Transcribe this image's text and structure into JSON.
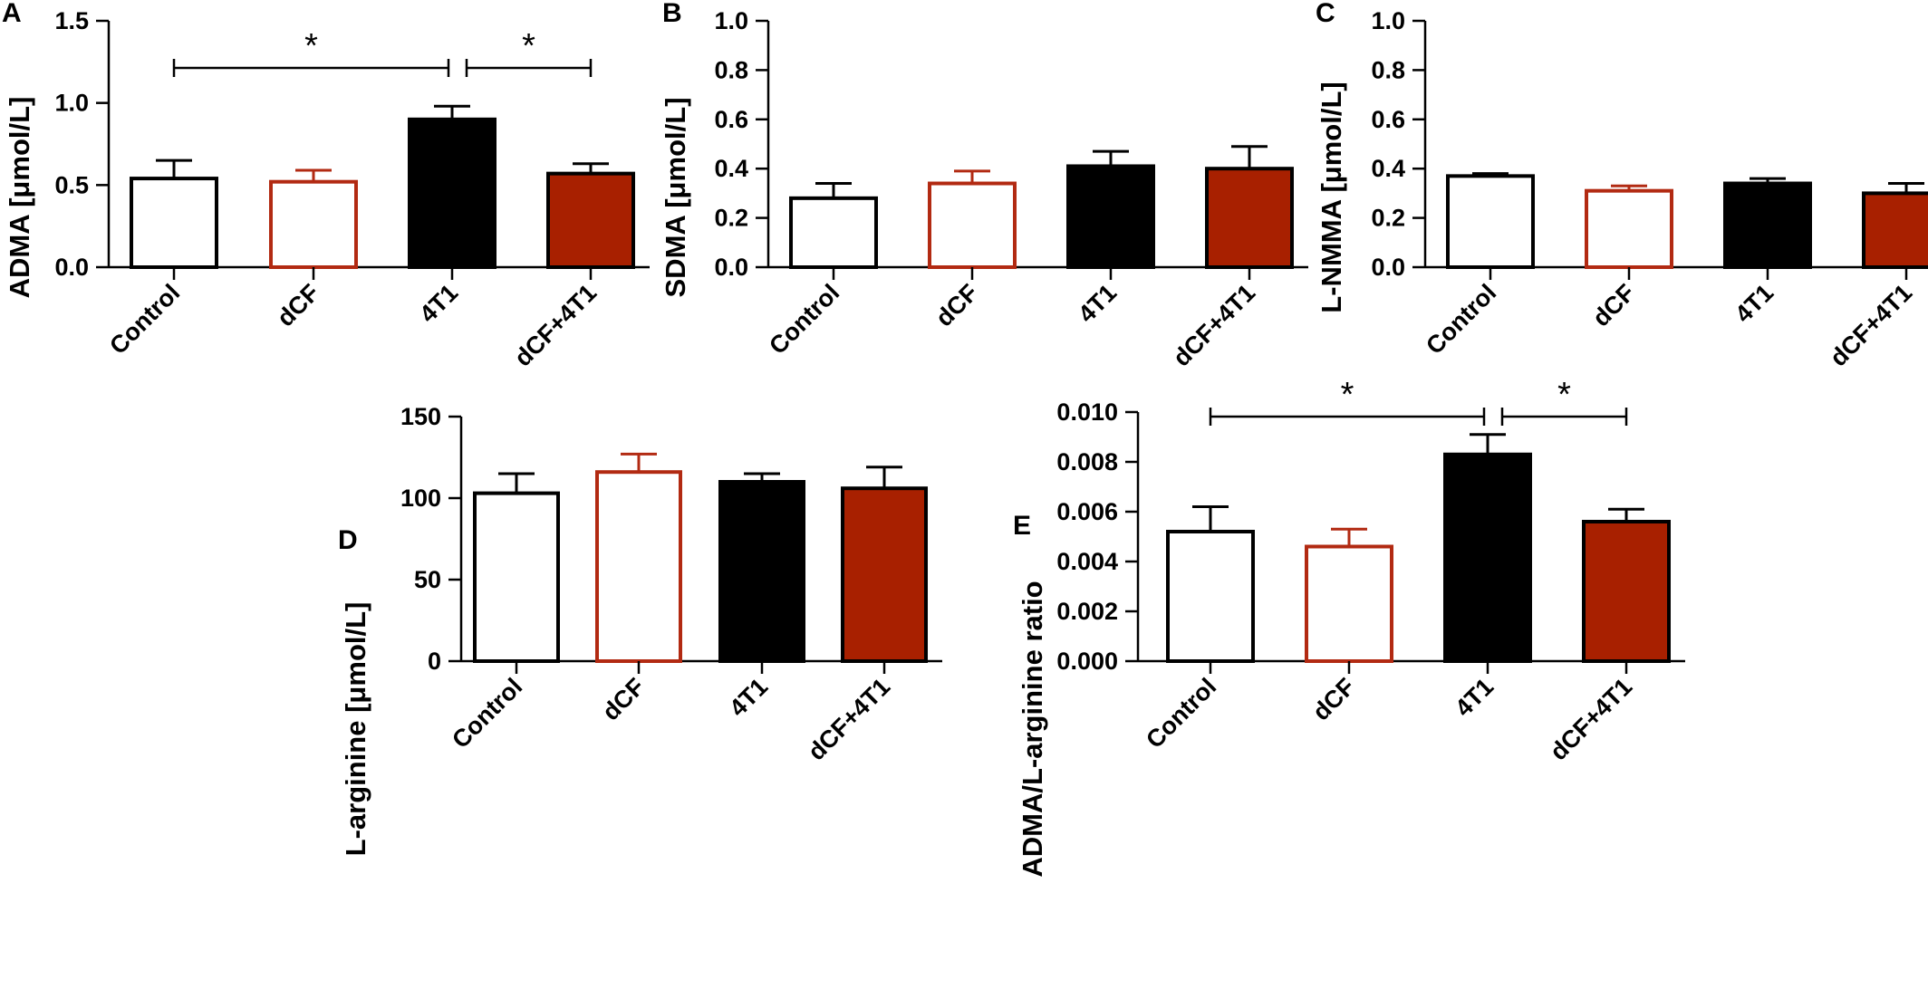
{
  "colors": {
    "control_fill": "#ffffff",
    "control_edge": "#000000",
    "dcf_fill": "#ffffff",
    "dcf_edge": "#b22a12",
    "t41_fill": "#000000",
    "t41_edge": "#000000",
    "dcf4t1_fill": "#a82000",
    "dcf4t1_edge": "#000000"
  },
  "chart_data": [
    {
      "panel": "A",
      "type": "bar",
      "categories": [
        "Control",
        "dCF",
        "4T1",
        "dCF+4T1"
      ],
      "values": [
        0.54,
        0.52,
        0.9,
        0.57
      ],
      "errors": [
        0.11,
        0.07,
        0.08,
        0.06
      ],
      "ylabel": "ADMA [μmol/L]",
      "ylim": [
        0,
        1.5
      ],
      "yticks": [
        "0.0",
        "0.5",
        "1.0",
        "1.5"
      ],
      "significance": [
        {
          "from": "Control",
          "to": "4T1",
          "label": "*"
        },
        {
          "from": "4T1",
          "to": "dCF+4T1",
          "label": "*"
        }
      ]
    },
    {
      "panel": "B",
      "type": "bar",
      "categories": [
        "Control",
        "dCF",
        "4T1",
        "dCF+4T1"
      ],
      "values": [
        0.28,
        0.34,
        0.41,
        0.4
      ],
      "errors": [
        0.06,
        0.05,
        0.06,
        0.09
      ],
      "ylabel": "SDMA [μmol/L]",
      "ylim": [
        0,
        1.0
      ],
      "yticks": [
        "0.0",
        "0.2",
        "0.4",
        "0.6",
        "0.8",
        "1.0"
      ],
      "significance": []
    },
    {
      "panel": "C",
      "type": "bar",
      "categories": [
        "Control",
        "dCF",
        "4T1",
        "dCF+4T1"
      ],
      "values": [
        0.37,
        0.31,
        0.34,
        0.3
      ],
      "errors": [
        0.01,
        0.02,
        0.02,
        0.04
      ],
      "ylabel": "L-NMMA [μmol/L]",
      "ylim": [
        0,
        1.0
      ],
      "yticks": [
        "0.0",
        "0.2",
        "0.4",
        "0.6",
        "0.8",
        "1.0"
      ],
      "significance": []
    },
    {
      "panel": "D",
      "type": "bar",
      "categories": [
        "Control",
        "dCF",
        "4T1",
        "dCF+4T1"
      ],
      "values": [
        103,
        116,
        110,
        106
      ],
      "errors": [
        12,
        11,
        5,
        13
      ],
      "ylabel": "L-arginine [μmol/L]",
      "ylim": [
        0,
        150
      ],
      "yticks": [
        "0",
        "50",
        "100",
        "150"
      ],
      "significance": []
    },
    {
      "panel": "E",
      "type": "bar",
      "categories": [
        "Control",
        "dCF",
        "4T1",
        "dCF+4T1"
      ],
      "values": [
        0.0052,
        0.0046,
        0.0083,
        0.0056
      ],
      "errors": [
        0.001,
        0.0007,
        0.0008,
        0.0005
      ],
      "ylabel": "ADMA/L-arginine ratio",
      "ylim": [
        0,
        0.01
      ],
      "yticks": [
        "0.000",
        "0.002",
        "0.004",
        "0.006",
        "0.008",
        "0.010"
      ],
      "significance": [
        {
          "from": "Control",
          "to": "4T1",
          "label": "*"
        },
        {
          "from": "4T1",
          "to": "dCF+4T1",
          "label": "*"
        }
      ]
    }
  ]
}
